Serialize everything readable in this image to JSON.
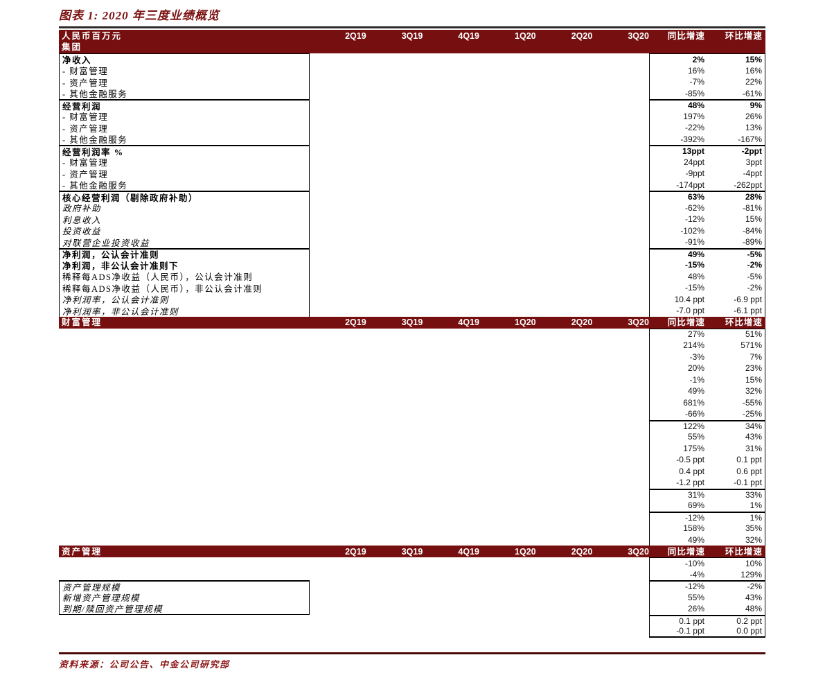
{
  "title": "图表 1: 2020 年三度业绩概览",
  "footer": {
    "source": "资料来源：公司公告、中金公司研究部"
  },
  "colors": {
    "band_bg": "#760f10",
    "title_text": "#7a0f0f",
    "source_text": "#8c1616",
    "footer_rule": "#4c0707",
    "title_rule": "#2b2b2b",
    "border": "#000000"
  },
  "table": {
    "quarter_columns": [
      "2Q19",
      "3Q19",
      "4Q19",
      "1Q20",
      "2Q20",
      "3Q20"
    ],
    "growth_columns": [
      "同比增速",
      "环比增速"
    ],
    "sections": [
      {
        "band": {
          "line1": "人民币百万元",
          "line2": "集团"
        },
        "label_box": true,
        "rows": [
          {
            "label": "净收入",
            "bold": true,
            "vbold": true,
            "yoy": "2%",
            "qoq": "15%"
          },
          {
            "label": "- 财富管理",
            "yoy": "16%",
            "qoq": "16%"
          },
          {
            "label": "- 资产管理",
            "yoy": "-7%",
            "qoq": "22%"
          },
          {
            "label": "- 其他金融服务",
            "yoy": "-85%",
            "qoq": "-61%"
          },
          {
            "label": "经营利润",
            "bold": true,
            "vbold": true,
            "divider": true,
            "yoy": "48%",
            "qoq": "9%"
          },
          {
            "label": "- 财富管理",
            "yoy": "197%",
            "qoq": "26%"
          },
          {
            "label": "- 资产管理",
            "yoy": "-22%",
            "qoq": "13%"
          },
          {
            "label": "- 其他金融服务",
            "yoy": "-392%",
            "qoq": "-167%"
          },
          {
            "label": "经营利润率 %",
            "bold": true,
            "vbold": true,
            "divider": true,
            "yoy": "13ppt",
            "qoq": "-2ppt"
          },
          {
            "label": "- 财富管理",
            "yoy": "24ppt",
            "qoq": "3ppt"
          },
          {
            "label": "- 资产管理",
            "yoy": "-9ppt",
            "qoq": "-4ppt"
          },
          {
            "label": "- 其他金融服务",
            "yoy": "-174ppt",
            "qoq": "-262ppt"
          },
          {
            "label": "核心经营利润（剔除政府补助）",
            "bold": true,
            "vbold": true,
            "divider": true,
            "yoy": "63%",
            "qoq": "28%"
          },
          {
            "label": "政府补助",
            "italic": true,
            "yoy": "-62%",
            "qoq": "-81%"
          },
          {
            "label": "利息收入",
            "italic": true,
            "yoy": "-12%",
            "qoq": "15%"
          },
          {
            "label": "投资收益",
            "italic": true,
            "yoy": "-102%",
            "qoq": "-84%"
          },
          {
            "label": "对联营企业投资收益",
            "italic": true,
            "yoy": "-91%",
            "qoq": "-89%"
          },
          {
            "label": "净利润，公认会计准则",
            "bold": true,
            "vbold": true,
            "divider": true,
            "yoy": "49%",
            "qoq": "-5%"
          },
          {
            "label": "净利润，非公认会计准则下",
            "bold": true,
            "vbold": true,
            "yoy": "-15%",
            "qoq": "-2%"
          },
          {
            "label": "稀释每ADS净收益（人民币），公认会计准则",
            "yoy": "48%",
            "qoq": "-5%"
          },
          {
            "label": "稀释每ADS净收益（人民币），非公认会计准则",
            "yoy": "-15%",
            "qoq": "-2%"
          },
          {
            "label": "净利润率，公认会计准则",
            "italic": true,
            "yoy": "10.4 ppt",
            "qoq": "-6.9 ppt"
          },
          {
            "label": "净利润率，非公认会计准则",
            "italic": true,
            "yoy": "-7.0 ppt",
            "qoq": "-6.1 ppt"
          }
        ]
      },
      {
        "band": {
          "line1": "财富管理"
        },
        "label_box": false,
        "rows": [
          {
            "label": "",
            "yoy": "27%",
            "qoq": "51%"
          },
          {
            "label": "",
            "yoy": "214%",
            "qoq": "571%"
          },
          {
            "label": "",
            "yoy": "-3%",
            "qoq": "7%"
          },
          {
            "label": "",
            "yoy": "20%",
            "qoq": "23%"
          },
          {
            "label": "",
            "yoy": "-1%",
            "qoq": "15%"
          },
          {
            "label": "",
            "yoy": "49%",
            "qoq": "32%"
          },
          {
            "label": "",
            "yoy": "681%",
            "qoq": "-55%"
          },
          {
            "label": "",
            "yoy": "-66%",
            "qoq": "-25%"
          },
          {
            "label": "",
            "divider": true,
            "yoy": "122%",
            "qoq": "34%"
          },
          {
            "label": "",
            "yoy": "55%",
            "qoq": "43%"
          },
          {
            "label": "",
            "yoy": "175%",
            "qoq": "31%"
          },
          {
            "label": "",
            "yoy": "-0.5 ppt",
            "qoq": "0.1 ppt"
          },
          {
            "label": "",
            "yoy": "0.4 ppt",
            "qoq": "0.6 ppt"
          },
          {
            "label": "",
            "yoy": "-1.2 ppt",
            "qoq": "-0.1 ppt"
          },
          {
            "label": "",
            "divider": true,
            "yoy": "31%",
            "qoq": "33%"
          },
          {
            "label": "",
            "yoy": "69%",
            "qoq": "1%"
          },
          {
            "label": "",
            "divider": true,
            "yoy": "-12%",
            "qoq": "1%"
          },
          {
            "label": "",
            "yoy": "158%",
            "qoq": "35%"
          },
          {
            "label": "",
            "yoy": "49%",
            "qoq": "32%"
          }
        ]
      },
      {
        "band": {
          "line1": "资产管理"
        },
        "label_box": false,
        "value_box_bottom": true,
        "rows": [
          {
            "label": "",
            "yoy": "-10%",
            "qoq": "10%"
          },
          {
            "label": "",
            "yoy": "-4%",
            "qoq": "129%"
          },
          {
            "label": "资产管理规模",
            "italic": true,
            "boxed": true,
            "divider": true,
            "yoy": "-12%",
            "qoq": "-2%"
          },
          {
            "label": "新增资产管理规模",
            "italic": true,
            "boxed": true,
            "yoy": "55%",
            "qoq": "43%"
          },
          {
            "label": "到期/赎回资产管理规模",
            "italic": true,
            "boxed": true,
            "yoy": "26%",
            "qoq": "48%"
          },
          {
            "label": "",
            "divider": true,
            "yoy": "0.1 ppt",
            "qoq": "0.2 ppt"
          },
          {
            "label": "",
            "yoy": "-0.1 ppt",
            "qoq": "0.0 ppt"
          }
        ]
      }
    ]
  }
}
